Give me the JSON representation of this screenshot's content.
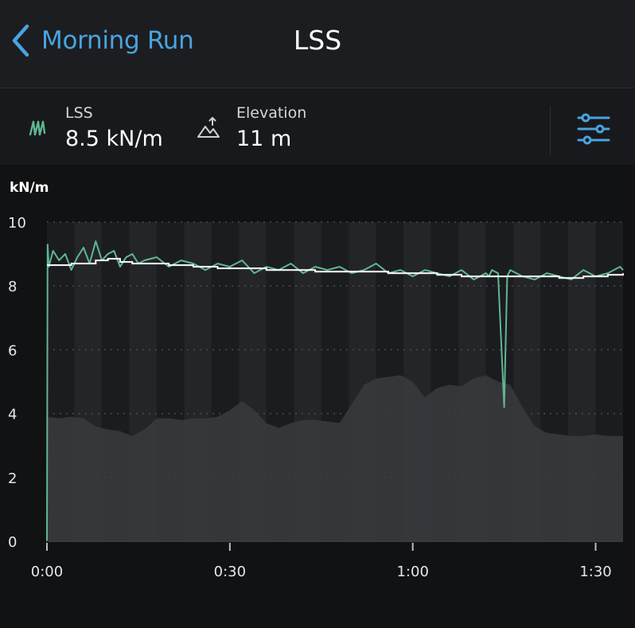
{
  "header": {
    "back_label": "Morning Run",
    "title": "LSS"
  },
  "metrics": [
    {
      "label": "LSS",
      "value": "8.5 kN/m",
      "icon": "spring-icon"
    },
    {
      "label": "Elevation",
      "value": "11 m",
      "icon": "elevation-icon"
    }
  ],
  "colors": {
    "accent": "#4aa3e0",
    "lss_series": "#5fb792",
    "average_line": "#ffffff",
    "elevation_fill": "#3a3b3e",
    "background": "#111214"
  },
  "chart_data": {
    "type": "line",
    "ylabel": "kN/m",
    "xlabel": "",
    "y_ticks": [
      "0",
      "2",
      "4",
      "6",
      "8",
      "10"
    ],
    "x_ticks": [
      "0:00",
      "0:30",
      "1:00",
      "1:30"
    ],
    "ylim": [
      0,
      10
    ],
    "xlim_minutes": [
      0,
      94.5
    ],
    "grid": "dashed horizontal lines, alternating vertical bands",
    "series": [
      {
        "role": "lss",
        "x_minutes": [
          0,
          0.1,
          0.3,
          1,
          2,
          3,
          4,
          5,
          6,
          7,
          8,
          9,
          10,
          11,
          12,
          13,
          14,
          15,
          16,
          18,
          20,
          22,
          24,
          26,
          28,
          30,
          32,
          34,
          36,
          38,
          40,
          42,
          44,
          46,
          48,
          50,
          52,
          54,
          56,
          58,
          60,
          62,
          64,
          66,
          68,
          70,
          72,
          72.5,
          73,
          74,
          75,
          75.5,
          76,
          78,
          80,
          82,
          84,
          86,
          88,
          90,
          92,
          94,
          94.5
        ],
        "values": [
          0,
          9.3,
          8.6,
          9.1,
          8.8,
          9.0,
          8.5,
          8.9,
          9.2,
          8.7,
          9.4,
          8.8,
          9.0,
          9.1,
          8.6,
          8.9,
          9.0,
          8.7,
          8.8,
          8.9,
          8.6,
          8.8,
          8.7,
          8.5,
          8.7,
          8.6,
          8.8,
          8.4,
          8.6,
          8.5,
          8.7,
          8.4,
          8.6,
          8.5,
          8.6,
          8.4,
          8.5,
          8.7,
          8.4,
          8.5,
          8.3,
          8.5,
          8.4,
          8.3,
          8.5,
          8.2,
          8.4,
          8.3,
          8.5,
          8.4,
          4.2,
          8.3,
          8.5,
          8.3,
          8.2,
          8.4,
          8.3,
          8.2,
          8.5,
          8.3,
          8.4,
          8.6,
          8.5
        ]
      },
      {
        "role": "average",
        "x_minutes": [
          0,
          2,
          4,
          6,
          8,
          10,
          12,
          14,
          16,
          18,
          20,
          24,
          28,
          32,
          36,
          40,
          44,
          48,
          52,
          56,
          60,
          64,
          68,
          72,
          76,
          80,
          84,
          88,
          92,
          94.5
        ],
        "values": [
          8.65,
          8.65,
          8.7,
          8.7,
          8.8,
          8.85,
          8.75,
          8.7,
          8.7,
          8.7,
          8.65,
          8.6,
          8.55,
          8.55,
          8.5,
          8.5,
          8.45,
          8.45,
          8.45,
          8.4,
          8.4,
          8.35,
          8.3,
          8.3,
          8.3,
          8.3,
          8.25,
          8.3,
          8.35,
          8.4
        ]
      },
      {
        "role": "elevation",
        "x_minutes": [
          0,
          2,
          4,
          6,
          8,
          10,
          12,
          14,
          16,
          18,
          20,
          22,
          24,
          26,
          28,
          30,
          32,
          34,
          36,
          38,
          40,
          42,
          44,
          46,
          48,
          50,
          52,
          54,
          56,
          58,
          60,
          62,
          64,
          66,
          68,
          70,
          72,
          74,
          76,
          78,
          80,
          82,
          84,
          86,
          88,
          90,
          92,
          94.5
        ],
        "values": [
          3.9,
          3.85,
          3.9,
          3.85,
          3.6,
          3.5,
          3.45,
          3.3,
          3.5,
          3.85,
          3.85,
          3.8,
          3.85,
          3.85,
          3.9,
          4.1,
          4.4,
          4.1,
          3.7,
          3.55,
          3.7,
          3.8,
          3.8,
          3.75,
          3.7,
          4.3,
          4.9,
          5.1,
          5.15,
          5.2,
          5.0,
          4.5,
          4.8,
          4.9,
          4.85,
          5.1,
          5.2,
          5.0,
          4.9,
          4.2,
          3.6,
          3.4,
          3.35,
          3.3,
          3.3,
          3.35,
          3.3,
          3.3
        ]
      }
    ]
  }
}
